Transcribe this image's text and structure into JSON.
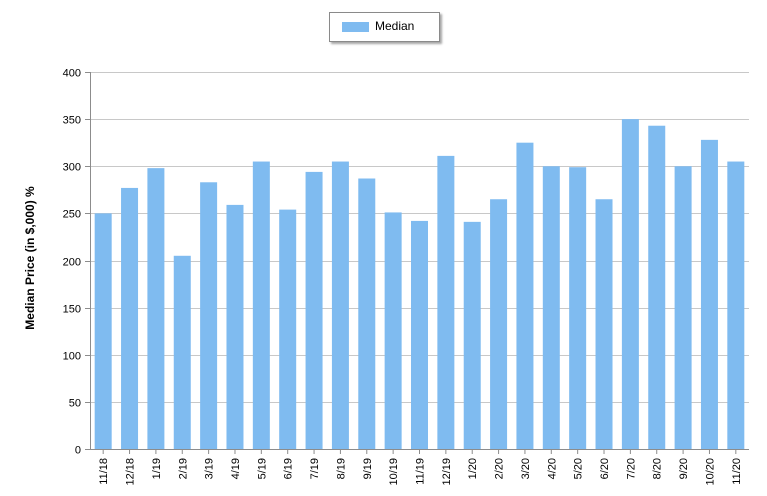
{
  "chart_data": {
    "type": "bar",
    "categories": [
      "11/18",
      "12/18",
      "1/19",
      "2/19",
      "3/19",
      "4/19",
      "5/19",
      "6/19",
      "7/19",
      "8/19",
      "9/19",
      "10/19",
      "11/19",
      "12/19",
      "1/20",
      "2/20",
      "3/20",
      "4/20",
      "5/20",
      "6/20",
      "7/20",
      "8/20",
      "9/20",
      "10/20",
      "11/20"
    ],
    "series": [
      {
        "name": "Median",
        "values": [
          250,
          277,
          298,
          205,
          283,
          259,
          305,
          254,
          294,
          305,
          287,
          251,
          242,
          311,
          241,
          265,
          325,
          300,
          299,
          265,
          350,
          343,
          300,
          328,
          305
        ]
      }
    ],
    "ylabel": "Median Price (in $,000) %",
    "ylim": [
      0,
      400
    ],
    "yticks": [
      0,
      50,
      100,
      150,
      200,
      250,
      300,
      350,
      400
    ],
    "grid": true,
    "legend": "top-center",
    "colors": {
      "bar": "#7fbbf0",
      "grid": "#c8c8c8",
      "axis": "#8c8c8c"
    }
  }
}
